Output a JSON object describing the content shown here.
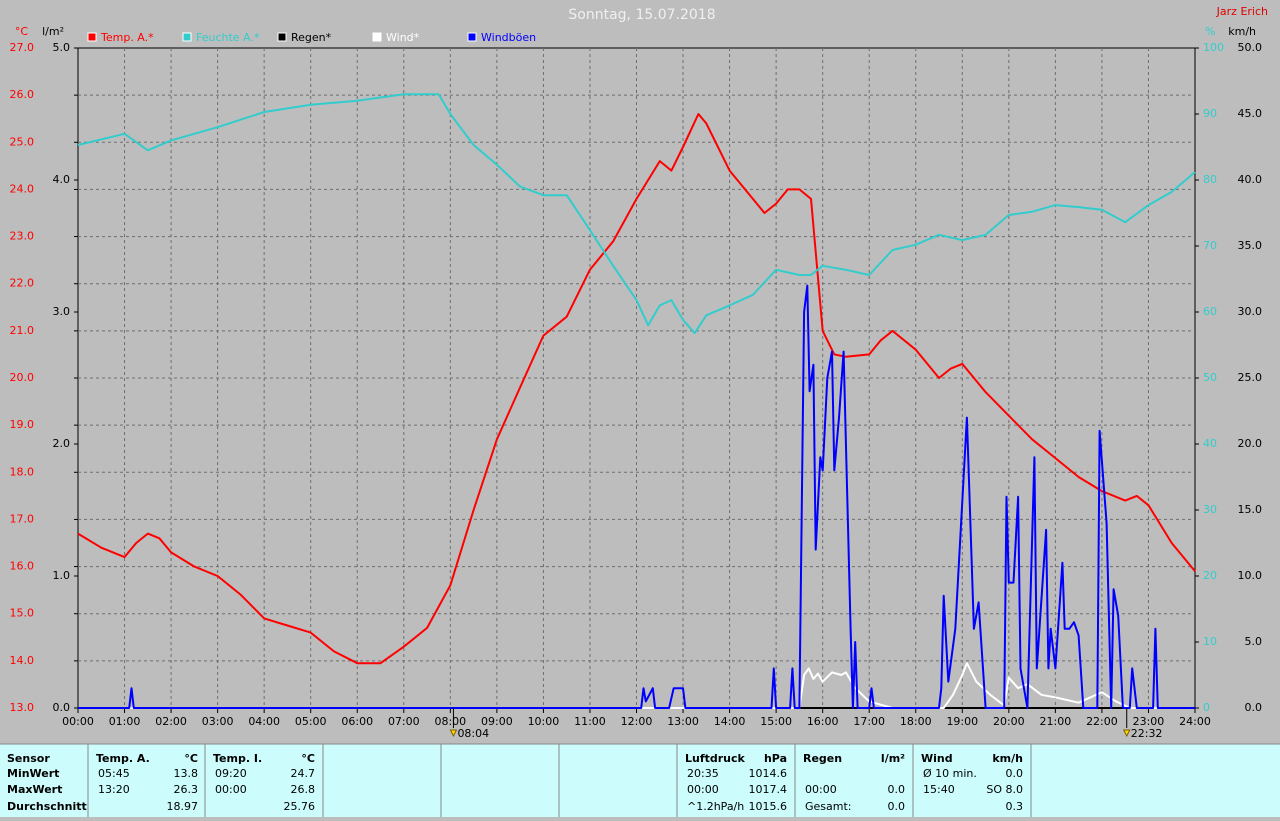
{
  "chart_data": {
    "type": "line",
    "title": "Sonntag, 15.07.2018",
    "author": "Jarz Erich",
    "grid": true,
    "xlim": [
      0,
      24
    ],
    "xticks": [
      {
        "value": 0,
        "label": "00:00"
      },
      {
        "value": 1,
        "label": "01:00"
      },
      {
        "value": 2,
        "label": "02:00"
      },
      {
        "value": 3,
        "label": "03:00"
      },
      {
        "value": 4,
        "label": "04:00"
      },
      {
        "value": 5,
        "label": "05:00"
      },
      {
        "value": 6,
        "label": "06:00"
      },
      {
        "value": 7,
        "label": "07:00"
      },
      {
        "value": 8,
        "label": "08:00"
      },
      {
        "value": 9,
        "label": "09:00"
      },
      {
        "value": 10,
        "label": "10:00"
      },
      {
        "value": 11,
        "label": "11:00"
      },
      {
        "value": 12,
        "label": "12:00"
      },
      {
        "value": 13,
        "label": "13:00"
      },
      {
        "value": 14,
        "label": "14:00"
      },
      {
        "value": 15,
        "label": "15:00"
      },
      {
        "value": 16,
        "label": "16:00"
      },
      {
        "value": 17,
        "label": "17:00"
      },
      {
        "value": 18,
        "label": "18:00"
      },
      {
        "value": 19,
        "label": "19:00"
      },
      {
        "value": 20,
        "label": "20:00"
      },
      {
        "value": 21,
        "label": "21:00"
      },
      {
        "value": 22,
        "label": "22:00"
      },
      {
        "value": 23,
        "label": "23:00"
      },
      {
        "value": 24,
        "label": "24:00"
      }
    ],
    "axes": [
      {
        "unit": "°C",
        "color": "#ff0000",
        "side": "left",
        "lim": [
          13,
          27
        ],
        "ticks": [
          {
            "value": 27,
            "label": "27.0"
          },
          {
            "value": 26,
            "label": "26.0"
          },
          {
            "value": 25,
            "label": "25.0"
          },
          {
            "value": 24,
            "label": "24.0"
          },
          {
            "value": 23,
            "label": "23.0"
          },
          {
            "value": 22,
            "label": "22.0"
          },
          {
            "value": 21,
            "label": "21.0"
          },
          {
            "value": 20,
            "label": "20.0"
          },
          {
            "value": 19,
            "label": "19.0"
          },
          {
            "value": 18,
            "label": "18.0"
          },
          {
            "value": 17,
            "label": "17.0"
          },
          {
            "value": 16,
            "label": "16.0"
          },
          {
            "value": 15,
            "label": "15.0"
          },
          {
            "value": 14,
            "label": "14.0"
          },
          {
            "value": 13,
            "label": "13.0"
          }
        ]
      },
      {
        "unit": "l/m²",
        "color": "#000000",
        "side": "left",
        "lim": [
          0,
          5
        ],
        "ticks": [
          {
            "value": 5,
            "label": "5.0"
          },
          {
            "value": 4,
            "label": "4.0"
          },
          {
            "value": 3,
            "label": "3.0"
          },
          {
            "value": 2,
            "label": "2.0"
          },
          {
            "value": 1,
            "label": "1.0"
          },
          {
            "value": 0,
            "label": "0.0"
          }
        ]
      },
      {
        "unit": "%",
        "color": "#33cccc",
        "side": "right",
        "lim": [
          0,
          100
        ],
        "ticks": [
          100,
          90,
          80,
          70,
          60,
          50,
          40,
          30,
          20,
          10,
          0
        ]
      },
      {
        "unit": "km/h",
        "color": "#000000",
        "side": "right",
        "lim": [
          0,
          50
        ],
        "ticks": [
          {
            "value": 50,
            "label": "50.0"
          },
          {
            "value": 45,
            "label": "45.0"
          },
          {
            "value": 40,
            "label": "40.0"
          },
          {
            "value": 35,
            "label": "35.0"
          },
          {
            "value": 30,
            "label": "30.0"
          },
          {
            "value": 25,
            "label": "25.0"
          },
          {
            "value": 20,
            "label": "20.0"
          },
          {
            "value": 15,
            "label": "15.0"
          },
          {
            "value": 10,
            "label": "10.0"
          },
          {
            "value": 5,
            "label": "5.0"
          },
          {
            "value": 0,
            "label": "0.0"
          }
        ]
      }
    ],
    "series": [
      {
        "name": "Temp. A.*",
        "color": "#ff0000",
        "axis": 0,
        "x": [
          0,
          0.5,
          1,
          1.25,
          1.5,
          1.75,
          2,
          2.5,
          3,
          3.5,
          4,
          4.5,
          5,
          5.25,
          5.5,
          6,
          6.5,
          7,
          7.5,
          8,
          8.5,
          9,
          9.5,
          10,
          10.5,
          11,
          11.5,
          12,
          12.5,
          12.75,
          13,
          13.33,
          13.5,
          14,
          14.5,
          14.75,
          15,
          15.25,
          15.5,
          15.75,
          16,
          16.25,
          16.5,
          17,
          17.25,
          17.5,
          18,
          18.5,
          18.75,
          19,
          19.5,
          20,
          20.5,
          21,
          21.5,
          22,
          22.5,
          22.75,
          23,
          23.5,
          24
        ],
        "values": [
          16.7,
          16.4,
          16.2,
          16.5,
          16.7,
          16.6,
          16.3,
          16.0,
          15.8,
          15.4,
          14.9,
          14.75,
          14.6,
          14.4,
          14.2,
          13.95,
          13.95,
          14.3,
          14.7,
          15.6,
          17.2,
          18.7,
          19.8,
          20.9,
          21.3,
          22.3,
          22.9,
          23.8,
          24.6,
          24.4,
          24.9,
          25.6,
          25.4,
          24.4,
          23.8,
          23.5,
          23.7,
          24.0,
          24.0,
          23.8,
          21.0,
          20.5,
          20.45,
          20.5,
          20.8,
          21.0,
          20.6,
          20.0,
          20.2,
          20.3,
          19.7,
          19.2,
          18.7,
          18.3,
          17.9,
          17.6,
          17.4,
          17.5,
          17.3,
          16.5,
          15.9
        ]
      },
      {
        "name": "Feuchte A.*",
        "color": "#33cccc",
        "axis": 2,
        "x": [
          0,
          1,
          1.5,
          2,
          3,
          4,
          5,
          6,
          7,
          7.75,
          8,
          8.5,
          9,
          9.5,
          10,
          10.5,
          11,
          11.5,
          12,
          12.25,
          12.5,
          12.75,
          13,
          13.25,
          13.5,
          14,
          14.5,
          15,
          15.5,
          15.75,
          16,
          16.5,
          17,
          17.5,
          18,
          18.5,
          19,
          19.5,
          20,
          20.5,
          21,
          21.5,
          22,
          22.5,
          23,
          23.5,
          24
        ],
        "values": [
          85.3,
          87,
          84.5,
          86,
          88,
          90.3,
          91.4,
          92,
          93,
          93,
          90,
          85.3,
          82.3,
          79,
          77.7,
          77.7,
          72.4,
          67,
          61.8,
          58,
          61,
          61.8,
          58.8,
          56.8,
          59.5,
          61,
          62.6,
          66.4,
          65.6,
          65.6,
          67,
          66.4,
          65.6,
          69.4,
          70.2,
          71.7,
          70.9,
          71.7,
          74.7,
          75.2,
          76.2,
          75.9,
          75.5,
          73.6,
          76.2,
          78.2,
          81.2
        ]
      },
      {
        "name": "Regen*",
        "color": "#000000",
        "axis": 1,
        "x": [
          0,
          24
        ],
        "values": [
          0,
          0
        ]
      },
      {
        "name": "Wind*",
        "color": "#ffffff",
        "axis": 3,
        "x": [
          0,
          15.5,
          15.6,
          15.7,
          15.8,
          15.9,
          16.0,
          16.2,
          16.4,
          16.5,
          16.7,
          17.0,
          17.5,
          18.6,
          18.8,
          19.0,
          19.1,
          19.3,
          19.6,
          19.9,
          20.0,
          20.2,
          20.4,
          20.7,
          21.0,
          21.5,
          22.0,
          22.3,
          22.6,
          24
        ],
        "values": [
          0,
          0,
          2.5,
          3,
          2.2,
          2.6,
          2.0,
          2.7,
          2.5,
          2.7,
          1.5,
          0.5,
          0,
          0,
          1,
          2.5,
          3.4,
          2,
          1,
          0.2,
          2.3,
          1.5,
          1.8,
          1,
          0.8,
          0.4,
          1.2,
          0.5,
          0,
          0
        ]
      },
      {
        "name": "Windböen",
        "color": "#0000ff",
        "axis": 3,
        "x": [
          0,
          1.1,
          1.15,
          1.2,
          12.1,
          12.15,
          12.2,
          12.35,
          12.4,
          12.7,
          12.8,
          13.0,
          13.05,
          14.9,
          14.95,
          15.0,
          15.3,
          15.35,
          15.4,
          15.5,
          15.6,
          15.67,
          15.72,
          15.8,
          15.85,
          15.95,
          16.0,
          16.1,
          16.2,
          16.25,
          16.35,
          16.45,
          16.6,
          16.65,
          16.7,
          16.75,
          17.0,
          17.05,
          17.1,
          18.5,
          18.55,
          18.6,
          18.7,
          18.85,
          19.1,
          19.25,
          19.35,
          19.5,
          19.9,
          19.95,
          20.0,
          20.1,
          20.2,
          20.25,
          20.4,
          20.55,
          20.6,
          20.8,
          20.85,
          20.9,
          21.0,
          21.15,
          21.2,
          21.3,
          21.4,
          21.5,
          21.6,
          21.9,
          21.95,
          22.1,
          22.2,
          22.25,
          22.35,
          22.45,
          22.6,
          22.65,
          22.75,
          23.1,
          23.15,
          23.2,
          24
        ],
        "values": [
          0,
          0,
          1.5,
          0,
          0,
          1.5,
          0.5,
          1.5,
          0,
          0,
          1.5,
          1.5,
          0,
          0,
          3,
          0,
          0,
          3,
          0,
          0,
          30,
          32,
          24,
          26,
          12,
          19,
          18,
          25,
          27,
          18,
          22,
          27,
          6,
          0,
          5,
          0,
          0,
          1.5,
          0,
          0,
          1.5,
          8.5,
          2,
          6,
          22,
          6,
          8,
          0,
          0,
          16,
          9.5,
          9.5,
          16,
          3,
          0,
          19,
          3,
          13.5,
          3,
          6,
          3,
          11,
          6,
          6,
          6.5,
          5.5,
          0,
          0,
          21,
          14,
          0,
          9,
          7,
          0,
          0,
          3,
          0,
          0,
          6,
          0,
          0
        ]
      }
    ],
    "annotations": [
      {
        "x": 8.0667,
        "label": "08:04"
      },
      {
        "x": 22.5333,
        "label": "22:32"
      }
    ]
  },
  "table": {
    "row_headers": [
      "Sensor",
      "MinWert",
      "MaxWert",
      "Durchschnitt"
    ],
    "groups": [
      {
        "name": "Temp. A.",
        "unit": "°C",
        "rows": [
          [
            "05:45",
            "13.8"
          ],
          [
            "13:20",
            "26.3"
          ],
          [
            "18.97"
          ]
        ]
      },
      {
        "name": "Temp. I.",
        "unit": "°C",
        "rows": [
          [
            "09:20",
            "24.7"
          ],
          [
            "00:00",
            "26.8"
          ],
          [
            "25.76"
          ]
        ]
      },
      {
        "name": "Luftdruck",
        "unit": "hPa",
        "rows": [
          [
            "20:35",
            "1014.6"
          ],
          [
            "00:00",
            "1017.4"
          ],
          [
            "^1.2hPa/h",
            "1015.6"
          ]
        ]
      },
      {
        "name": "Regen",
        "unit": "l/m²",
        "rows": [
          [],
          [
            "00:00",
            "0.0"
          ],
          [
            "Gesamt:",
            "0.0"
          ]
        ]
      },
      {
        "name": "Wind",
        "unit": "km/h",
        "rows": [
          [
            "Ø 10 min.",
            "0.0"
          ],
          [
            "15:40",
            "SO 8.0"
          ],
          [
            "0.3"
          ]
        ]
      }
    ]
  }
}
